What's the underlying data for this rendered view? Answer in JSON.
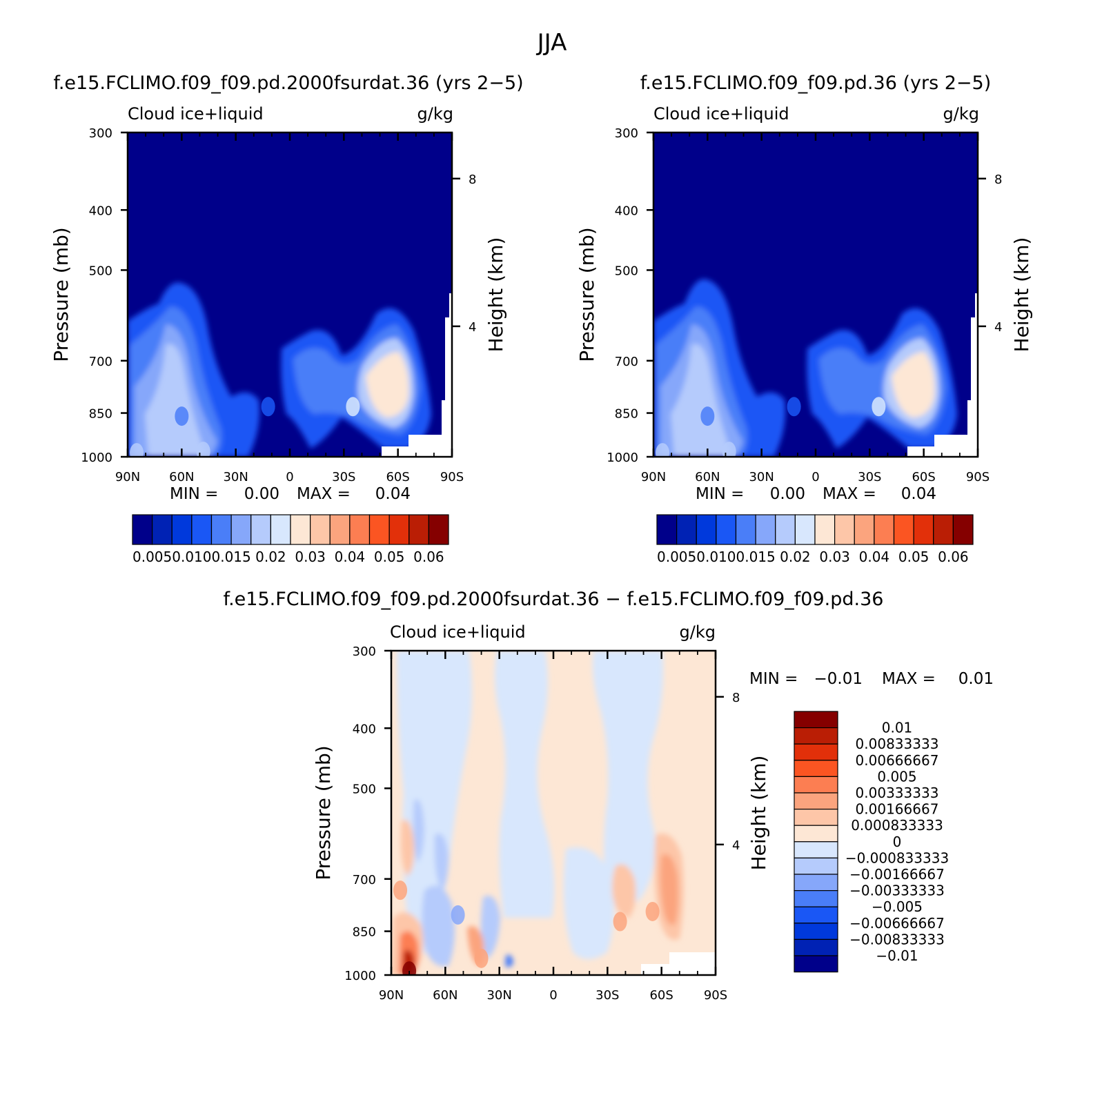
{
  "page_title": "JJA",
  "chart_data": [
    {
      "type": "heatmap",
      "title": "f.e15.FCLIMO.f09_f09.pd.2000fsurdat.36 (yrs 2−5)",
      "subtitle_left": "Cloud ice+liquid",
      "units": "g/kg",
      "ylabel": "Pressure (mb)",
      "y2label": "Height (km)",
      "x_ticks": [
        "90N",
        "60N",
        "30N",
        "0",
        "30S",
        "60S",
        "90S"
      ],
      "y_ticks": [
        "300",
        "400",
        "500",
        "700",
        "850",
        "1000"
      ],
      "y2_ticks": [
        "8",
        "4"
      ],
      "ylim": [
        1000,
        300
      ],
      "min_label": "MIN =",
      "min_value": "0.00",
      "max_label": "MAX =",
      "max_value": "0.04",
      "colorbar_labels": [
        "0.005",
        "0.010",
        "0.015",
        "0.02",
        "0.03",
        "0.04",
        "0.05",
        "0.06"
      ],
      "colorbar_colors": [
        "#00008a",
        "#0022b4",
        "#0039dc",
        "#1a57f5",
        "#4a7ef8",
        "#86a7fa",
        "#b5cbfc",
        "#d8e7fd",
        "#fde7d5",
        "#fdc6a8",
        "#fba47e",
        "#fc7e52",
        "#fb5522",
        "#e2300a",
        "#ba1e05",
        "#850000"
      ],
      "background_color": "#00008a",
      "features": [
        {
          "lat": 60,
          "p": 860,
          "value": 0.02
        },
        {
          "lat": 85,
          "p": 985,
          "value": 0.03
        },
        {
          "lat": 48,
          "p": 980,
          "value": 0.03
        },
        {
          "lat": -35,
          "p": 830,
          "value": 0.035
        },
        {
          "lat": 12,
          "p": 830,
          "value": 0.015
        }
      ]
    },
    {
      "type": "heatmap",
      "title": "f.e15.FCLIMO.f09_f09.pd.36 (yrs 2−5)",
      "subtitle_left": "Cloud ice+liquid",
      "units": "g/kg",
      "ylabel": "Pressure (mb)",
      "y2label": "Height (km)",
      "x_ticks": [
        "90N",
        "60N",
        "30N",
        "0",
        "30S",
        "60S",
        "90S"
      ],
      "y_ticks": [
        "300",
        "400",
        "500",
        "700",
        "850",
        "1000"
      ],
      "y2_ticks": [
        "8",
        "4"
      ],
      "ylim": [
        1000,
        300
      ],
      "min_label": "MIN =",
      "min_value": "0.00",
      "max_label": "MAX =",
      "max_value": "0.04",
      "colorbar_labels": [
        "0.005",
        "0.010",
        "0.015",
        "0.02",
        "0.03",
        "0.04",
        "0.05",
        "0.06"
      ],
      "colorbar_colors": [
        "#00008a",
        "#0022b4",
        "#0039dc",
        "#1a57f5",
        "#4a7ef8",
        "#86a7fa",
        "#b5cbfc",
        "#d8e7fd",
        "#fde7d5",
        "#fdc6a8",
        "#fba47e",
        "#fc7e52",
        "#fb5522",
        "#e2300a",
        "#ba1e05",
        "#850000"
      ],
      "background_color": "#00008a",
      "features": [
        {
          "lat": 60,
          "p": 860,
          "value": 0.02
        },
        {
          "lat": 85,
          "p": 985,
          "value": 0.03
        },
        {
          "lat": 48,
          "p": 980,
          "value": 0.03
        },
        {
          "lat": -35,
          "p": 830,
          "value": 0.035
        },
        {
          "lat": 12,
          "p": 830,
          "value": 0.015
        }
      ]
    },
    {
      "type": "heatmap",
      "title": "f.e15.FCLIMO.f09_f09.pd.2000fsurdat.36 − f.e15.FCLIMO.f09_f09.pd.36",
      "subtitle_left": "Cloud ice+liquid",
      "units": "g/kg",
      "ylabel": "Pressure (mb)",
      "y2label": "Height (km)",
      "x_ticks": [
        "90N",
        "60N",
        "30N",
        "0",
        "30S",
        "60S",
        "90S"
      ],
      "y_ticks": [
        "300",
        "400",
        "500",
        "700",
        "850",
        "1000"
      ],
      "y2_ticks": [
        "8",
        "4"
      ],
      "ylim": [
        1000,
        300
      ],
      "min_label": "MIN =",
      "min_value": "−0.01",
      "max_label": "MAX =",
      "max_value": "0.01",
      "colorbar_labels": [
        "0.01",
        "0.00833333",
        "0.00666667",
        "0.005",
        "0.00333333",
        "0.00166667",
        "0.000833333",
        "0",
        "−0.000833333",
        "−0.00166667",
        "−0.00333333",
        "−0.005",
        "−0.00666667",
        "−0.00833333",
        "−0.01"
      ],
      "colorbar_colors": [
        "#850000",
        "#ba1e05",
        "#e2300a",
        "#fb5522",
        "#fc7e52",
        "#fba47e",
        "#fdc6a8",
        "#fde7d5",
        "#d8e7fd",
        "#b5cbfc",
        "#86a7fa",
        "#4a7ef8",
        "#1a57f5",
        "#0039dc",
        "#0022b4",
        "#00008a"
      ],
      "features": [
        {
          "lat": 80,
          "p": 985,
          "value": 0.01
        },
        {
          "lat": 40,
          "p": 940,
          "value": 0.0033
        },
        {
          "lat": -55,
          "p": 790,
          "value": 0.0033
        },
        {
          "lat": -37,
          "p": 820,
          "value": 0.0017
        },
        {
          "lat": 85,
          "p": 730,
          "value": 0.0017
        },
        {
          "lat": 53,
          "p": 800,
          "value": -0.0017
        }
      ]
    }
  ]
}
